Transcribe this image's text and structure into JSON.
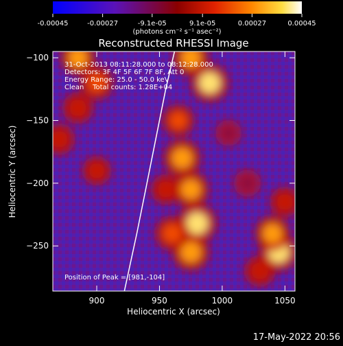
{
  "colorbar": {
    "ticks": [
      "-0.00045",
      "-0.00027",
      "-9.1e-05",
      "9.1e-05",
      "0.00027",
      "0.00045"
    ],
    "tick_values": [
      -0.00045,
      -0.00027,
      -9.1e-05,
      9.1e-05,
      0.00027,
      0.00045
    ],
    "unit_label": "(photons cm⁻² s⁻¹ asec⁻²)",
    "range": [
      -0.00045,
      0.00045
    ]
  },
  "chart_data": {
    "type": "heatmap",
    "title": "Reconstructed RHESSI Image",
    "xlabel": "Heliocentric X (arcsec)",
    "ylabel": "Heliocentric Y (arcsec)",
    "xlim": [
      865,
      1058
    ],
    "ylim": [
      -286,
      -95
    ],
    "x_ticks": [
      900,
      950,
      1000,
      1050
    ],
    "y_ticks": [
      -100,
      -150,
      -200,
      -250
    ],
    "x_tick_labels": [
      "900",
      "950",
      "1000",
      "1050"
    ],
    "y_tick_labels": [
      "−100",
      "−150",
      "−200",
      "−250"
    ],
    "annotations": [
      "31-Oct-2013 08:11:28.000 to 08:12:28.000",
      "Detectors: 3F 4F 5F 6F 7F 8F, Att 0",
      "Energy Range: 25.0 - 50.0 keV",
      "Clean    Total counts: 1.28E+04"
    ],
    "peak_label": "Position of Peak = [981,-104]",
    "peak": [
      981,
      -104
    ],
    "limb_points": [
      [
        922,
        -286
      ],
      [
        932,
        -240
      ],
      [
        940,
        -200
      ],
      [
        948,
        -160
      ],
      [
        955,
        -125
      ],
      [
        962,
        -95
      ]
    ],
    "hot_spots": [
      {
        "x": 1045,
        "y": -255,
        "level": 0.9
      },
      {
        "x": 1040,
        "y": -240,
        "level": 0.75
      },
      {
        "x": 968,
        "y": -180,
        "level": 0.85
      },
      {
        "x": 975,
        "y": -205,
        "level": 0.8
      },
      {
        "x": 980,
        "y": -232,
        "level": 0.95
      },
      {
        "x": 975,
        "y": -255,
        "level": 0.85
      },
      {
        "x": 960,
        "y": -240,
        "level": 0.7
      },
      {
        "x": 990,
        "y": -120,
        "level": 0.9
      },
      {
        "x": 975,
        "y": -100,
        "level": 0.8
      },
      {
        "x": 965,
        "y": -150,
        "level": 0.6
      },
      {
        "x": 900,
        "y": -120,
        "level": 0.7
      },
      {
        "x": 885,
        "y": -100,
        "level": 0.75
      },
      {
        "x": 885,
        "y": -140,
        "level": 0.55
      },
      {
        "x": 900,
        "y": -190,
        "level": 0.45
      },
      {
        "x": 870,
        "y": -165,
        "level": 0.55
      },
      {
        "x": 955,
        "y": -205,
        "level": 0.5
      },
      {
        "x": 1030,
        "y": -270,
        "level": 0.55
      },
      {
        "x": 1050,
        "y": -215,
        "level": 0.5
      },
      {
        "x": 1020,
        "y": -200,
        "level": 0.35
      },
      {
        "x": 1005,
        "y": -160,
        "level": 0.3
      }
    ]
  },
  "footer": {
    "timestamp": "17-May-2022 20:56"
  },
  "colors": {
    "background": "#000000",
    "text": "#ffffff",
    "limb": "#ffffff"
  }
}
